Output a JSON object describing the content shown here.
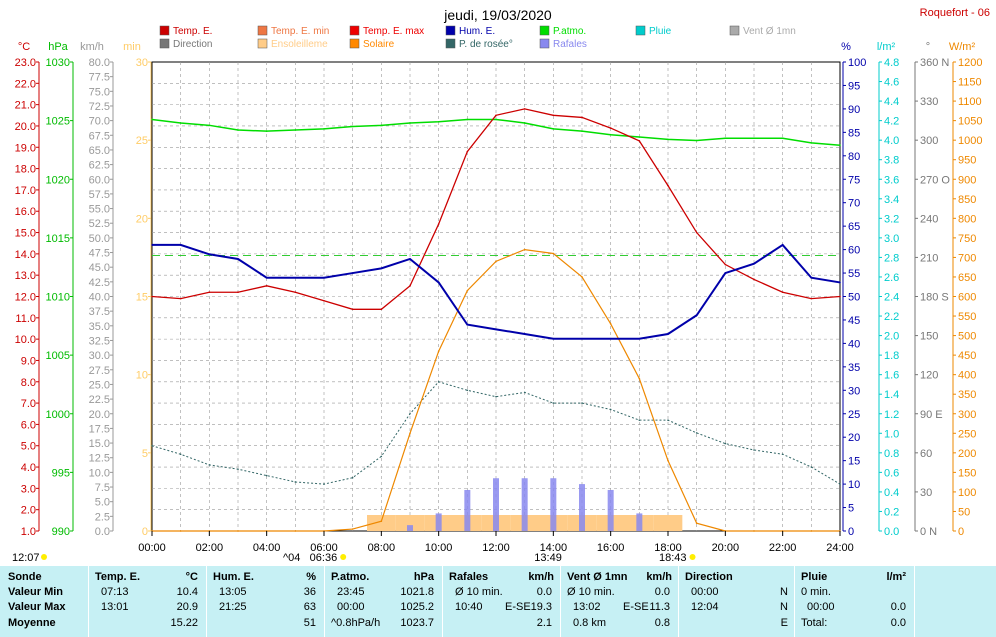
{
  "header": {
    "title": "jeudi, 19/03/2020",
    "station": "Roquefort - 06"
  },
  "colors": {
    "temp": "#cc0000",
    "pressure": "#00dd00",
    "humidity": "#0000aa",
    "solar": "#ee8800",
    "dew": "#336666",
    "gusts": "#8888ee",
    "sun": "#ffcc88",
    "panel": "#c6f0f4"
  },
  "legend": [
    {
      "label": "Temp. E.",
      "color": "#cc0000"
    },
    {
      "label": "Temp. E. min",
      "color": "#ee7744"
    },
    {
      "label": "Temp. E. max",
      "color": "#ee0000"
    },
    {
      "label": "Hum. E.",
      "color": "#0000aa"
    },
    {
      "label": "P.atmo.",
      "color": "#00dd00"
    },
    {
      "label": "Pluie",
      "color": "#00cccc"
    },
    {
      "label": "Vent Ø 1mn",
      "color": "#aaaaaa"
    },
    {
      "label": "Direction",
      "color": "#777777"
    },
    {
      "label": "Ensoleilleme",
      "color": "#ffcc88"
    },
    {
      "label": "Solaire",
      "color": "#ff8800"
    },
    {
      "label": "P. de rosée°",
      "color": "#336666"
    },
    {
      "label": "Rafales",
      "color": "#8888ee"
    }
  ],
  "axes": {
    "temp": {
      "unit": "°C",
      "ticks": [
        "23.0",
        "22.0",
        "21.0",
        "20.0",
        "19.0",
        "18.0",
        "17.0",
        "16.0",
        "15.0",
        "14.0",
        "13.0",
        "12.0",
        "11.0",
        "10.0",
        "9.0",
        "8.0",
        "7.0",
        "6.0",
        "5.0",
        "4.0",
        "3.0",
        "2.0",
        "1.0"
      ],
      "color": "#cc0000"
    },
    "pressure": {
      "unit": "hPa",
      "ticks": [
        "1030",
        "1025",
        "1020",
        "1015",
        "1010",
        "1005",
        "1000",
        "995",
        "990"
      ],
      "color": "#00bb00"
    },
    "wind": {
      "unit": "km/h",
      "ticks": [
        "80.0",
        "77.5",
        "75.0",
        "72.5",
        "70.0",
        "67.5",
        "65.0",
        "62.5",
        "60.0",
        "57.5",
        "55.0",
        "52.5",
        "50.0",
        "47.5",
        "45.0",
        "42.5",
        "40.0",
        "37.5",
        "35.0",
        "32.5",
        "30.0",
        "27.5",
        "25.0",
        "22.5",
        "20.0",
        "17.5",
        "15.0",
        "12.5",
        "10.0",
        "7.5",
        "5.0",
        "2.5",
        "0.0"
      ],
      "color": "#999999"
    },
    "min": {
      "unit": "min",
      "ticks": [
        "30",
        "25",
        "20",
        "15",
        "10",
        "5",
        "0"
      ],
      "color": "#ffcc66"
    },
    "hum": {
      "unit": "%",
      "ticks": [
        "100",
        "95",
        "90",
        "85",
        "80",
        "75",
        "70",
        "65",
        "60",
        "55",
        "50",
        "45",
        "40",
        "35",
        "30",
        "25",
        "20",
        "15",
        "10",
        "5",
        "0"
      ],
      "color": "#0000aa"
    },
    "rain": {
      "unit": "l/m²",
      "ticks": [
        "4.8",
        "4.6",
        "4.4",
        "4.2",
        "4.0",
        "3.8",
        "3.6",
        "3.4",
        "3.2",
        "3.0",
        "2.8",
        "2.6",
        "2.4",
        "2.2",
        "2.0",
        "1.8",
        "1.6",
        "1.4",
        "1.2",
        "1.0",
        "0.8",
        "0.6",
        "0.4",
        "0.2",
        "0.0"
      ],
      "color": "#00cccc"
    },
    "dir": {
      "unit": "°",
      "ticks": [
        "360 N",
        "330",
        "300",
        "270 O",
        "240",
        "210",
        "180 S",
        "150",
        "120",
        "90 E",
        "60",
        "30",
        "0 N"
      ],
      "color": "#777777"
    },
    "solar": {
      "unit": "W/m²",
      "ticks": [
        "1200",
        "1150",
        "1100",
        "1050",
        "1000",
        "950",
        "900",
        "850",
        "800",
        "750",
        "700",
        "650",
        "600",
        "550",
        "500",
        "450",
        "400",
        "350",
        "300",
        "250",
        "200",
        "150",
        "100",
        "50",
        "0"
      ],
      "color": "#ee8800"
    }
  },
  "time_axis": {
    "labels": [
      "00:00",
      "02:00",
      "04:00",
      "06:00",
      "08:00",
      "10:00",
      "12:00",
      "14:00",
      "16:00",
      "18:00",
      "20:00",
      "22:00",
      "24:00"
    ],
    "sunrise": "06:36",
    "sunset": "18:43",
    "moonrise": "12:07",
    "moon2": "^04",
    "solar_peak": "13:49"
  },
  "chart_data": {
    "type": "line",
    "x": [
      "00:00",
      "01:00",
      "02:00",
      "03:00",
      "04:00",
      "05:00",
      "06:00",
      "07:00",
      "08:00",
      "09:00",
      "10:00",
      "11:00",
      "12:00",
      "13:00",
      "14:00",
      "15:00",
      "16:00",
      "17:00",
      "18:00",
      "19:00",
      "20:00",
      "21:00",
      "22:00",
      "23:00",
      "24:00"
    ],
    "series": [
      {
        "name": "Temp. E.",
        "axis": "°C",
        "values": [
          12.0,
          11.9,
          12.2,
          12.2,
          12.5,
          12.2,
          11.8,
          11.4,
          11.4,
          12.5,
          15.4,
          18.8,
          20.5,
          20.8,
          20.5,
          20.4,
          19.9,
          19.3,
          17.2,
          15.0,
          13.5,
          12.8,
          12.2,
          11.9,
          12.0
        ]
      },
      {
        "name": "P.atmo.",
        "axis": "hPa",
        "values": [
          1025.1,
          1024.8,
          1024.6,
          1024.2,
          1024.1,
          1024.2,
          1024.3,
          1024.5,
          1024.6,
          1024.8,
          1024.9,
          1025.1,
          1025.1,
          1024.8,
          1024.3,
          1024.1,
          1023.8,
          1023.6,
          1023.4,
          1023.3,
          1023.5,
          1023.5,
          1023.5,
          1023.1,
          1022.9
        ]
      },
      {
        "name": "Hum. E.",
        "axis": "%",
        "values": [
          61,
          61,
          59,
          58,
          54,
          54,
          54,
          55,
          56,
          58,
          53,
          44,
          43,
          42,
          41,
          41,
          41,
          41,
          42,
          46,
          55,
          57,
          61,
          54,
          53
        ]
      },
      {
        "name": "Solaire",
        "axis": "W/m²",
        "values": [
          0,
          0,
          0,
          0,
          0,
          0,
          0,
          5,
          25,
          250,
          460,
          615,
          690,
          720,
          710,
          650,
          530,
          390,
          180,
          20,
          0,
          0,
          0,
          0,
          0
        ]
      },
      {
        "name": "P. de rosée°",
        "axis": "°C",
        "values": [
          5.0,
          4.6,
          4.1,
          3.9,
          3.6,
          3.3,
          3.2,
          3.5,
          4.5,
          6.5,
          8.0,
          7.6,
          7.3,
          7.5,
          7.0,
          7.0,
          6.7,
          6.2,
          6.2,
          5.6,
          5.1,
          4.8,
          4.6,
          4.0,
          3.2
        ]
      },
      {
        "name": "Rafales",
        "axis": "km/h",
        "values": [
          0,
          0,
          0,
          0,
          0,
          0,
          0,
          0,
          0,
          1,
          3,
          7,
          9,
          9,
          9,
          8,
          7,
          3,
          0,
          0,
          0,
          0,
          0,
          0,
          0
        ]
      },
      {
        "name": "Ensoleilleme",
        "axis": "min",
        "values": [
          0,
          0,
          0,
          0,
          0,
          0,
          0,
          0,
          1,
          1,
          1,
          1,
          1,
          1,
          1,
          1,
          1,
          1,
          1,
          0,
          0,
          0,
          0,
          0,
          0
        ]
      }
    ],
    "ref_line": {
      "axis": "km/h",
      "value": 47.0
    },
    "ranges": {
      "temp": [
        1,
        23
      ],
      "pressure": [
        990,
        1030
      ],
      "wind": [
        0,
        80
      ],
      "hum": [
        0,
        100
      ],
      "rain": [
        0,
        5
      ],
      "solar": [
        0,
        1200
      ],
      "min": [
        0,
        30
      ]
    },
    "grid": true
  },
  "panel": {
    "sonde": {
      "title": "Sonde",
      "rows": [
        "Valeur Min",
        "Valeur Max",
        "Moyenne"
      ]
    },
    "temp": {
      "title": "Temp. E.",
      "unit": "°C",
      "min_time": "07:13",
      "min": "10.4",
      "max_time": "13:01",
      "max": "20.9",
      "avg": "15.22"
    },
    "hum": {
      "title": "Hum. E.",
      "unit": "%",
      "min_time": "13:05",
      "min": "36",
      "max_time": "21:25",
      "max": "63",
      "avg": "51"
    },
    "patmo": {
      "title": "P.atmo.",
      "unit": "hPa",
      "min_time": "23:45",
      "min": "1021.8",
      "max_time": "00:00",
      "max": "1025.2",
      "avg_note": "^0.8hPa/h",
      "avg": "1023.7"
    },
    "rafales": {
      "title": "Rafales",
      "unit": "km/h",
      "r1_label": "Ø 10 min.",
      "r1": "0.0",
      "r2_time": "10:40",
      "r2_dir": "E-SE",
      "r2": "19.3",
      "r3": "2.1"
    },
    "vent": {
      "title": "Vent Ø 1mn",
      "unit": "km/h",
      "r1_label": "Ø 10 min.",
      "r1": "0.0",
      "r2_time": "13:02",
      "r2_dir": "E-SE",
      "r2": "11.3",
      "r3_label": "0.8 km",
      "r3": "0.8"
    },
    "direction": {
      "title": "Direction",
      "r1_time": "00:00",
      "r1": "N",
      "r2_time": "12:04",
      "r2": "N",
      "r3": "E"
    },
    "pluie": {
      "title": "Pluie",
      "unit": "l/m²",
      "r1_label": "0 min.",
      "r2_time": "00:00",
      "r2": "0.0",
      "r3_label": "Total:",
      "r3": "0.0"
    }
  }
}
